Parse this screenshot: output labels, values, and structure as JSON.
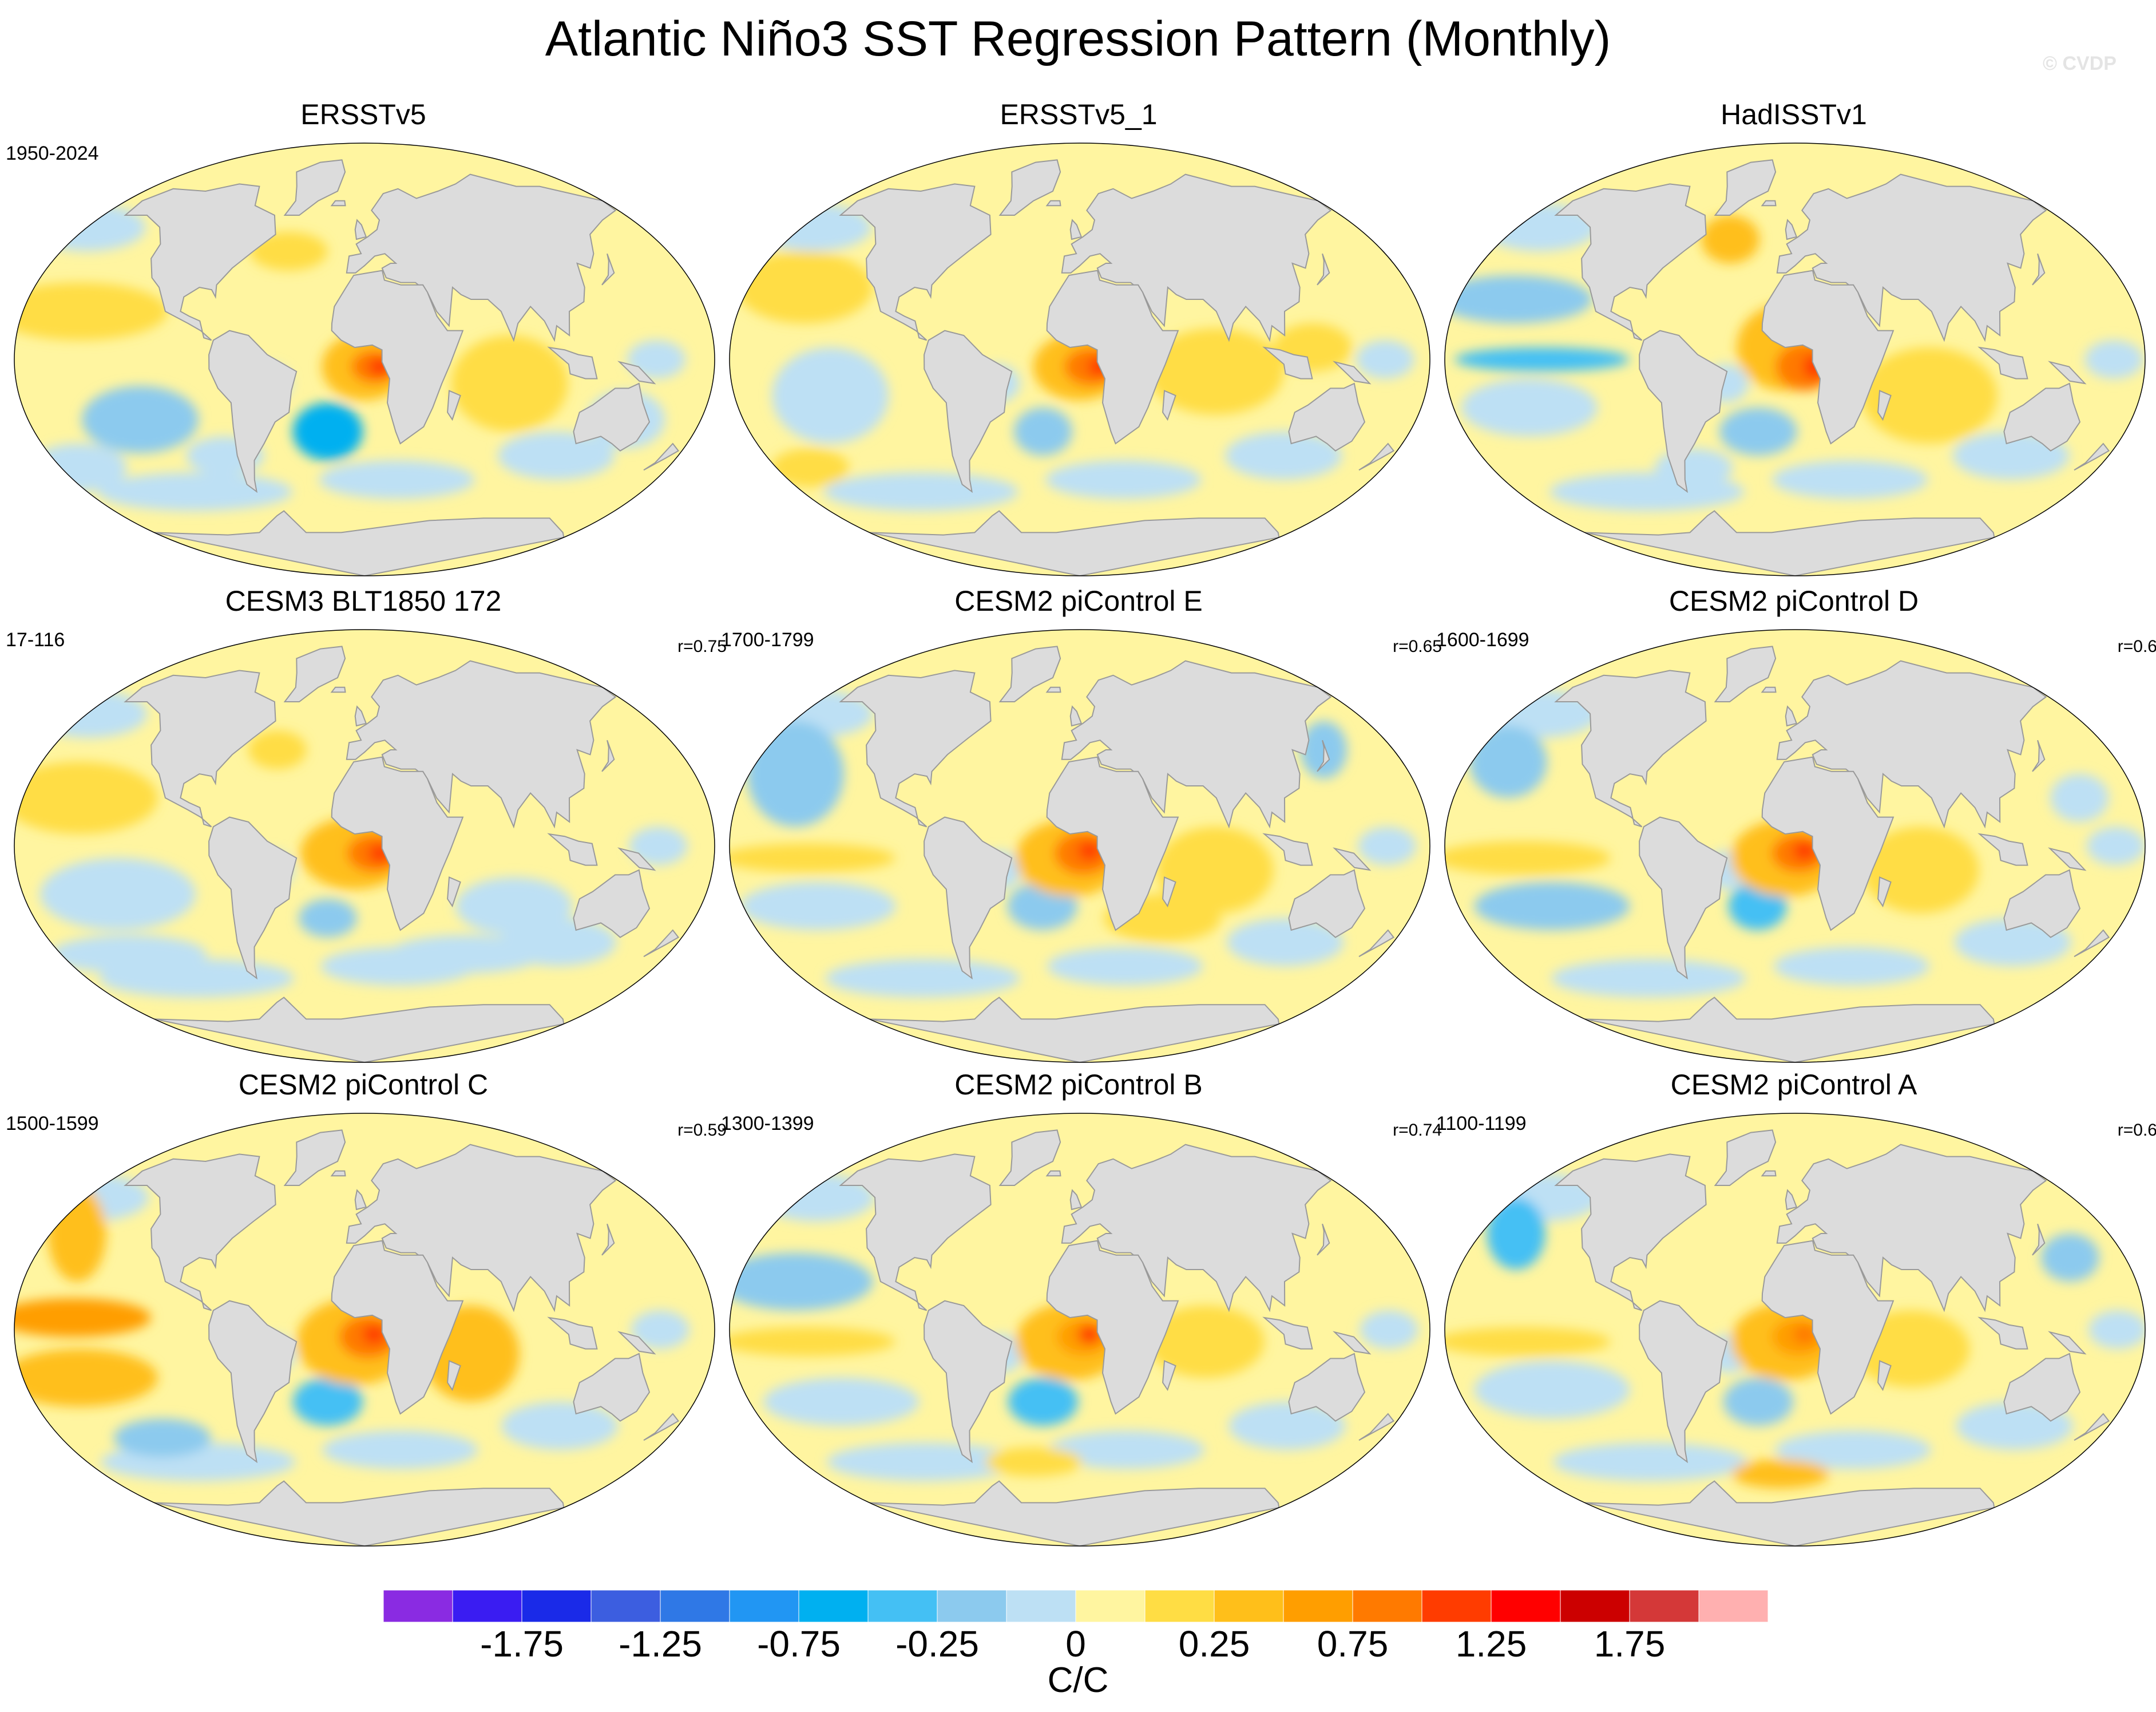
{
  "title": "Atlantic Niño3 SST Regression Pattern (Monthly)",
  "watermark": "© CVDP",
  "panels": [
    {
      "title": "ERSSTv5",
      "period": "1950-2024",
      "corr": "",
      "variant": 0
    },
    {
      "title": "ERSSTv5_1",
      "period": "",
      "corr": "",
      "variant": 1
    },
    {
      "title": "HadISSTv1",
      "period": "",
      "corr": "",
      "variant": 2
    },
    {
      "title": "CESM3 BLT1850 172",
      "period": "17-116",
      "corr": "r=0.75",
      "variant": 3
    },
    {
      "title": "CESM2 piControl E",
      "period": "1700-1799",
      "corr": "r=0.65",
      "variant": 4
    },
    {
      "title": "CESM2 piControl D",
      "period": "1600-1699",
      "corr": "r=0.6",
      "variant": 5
    },
    {
      "title": "CESM2 piControl C",
      "period": "1500-1599",
      "corr": "r=0.59",
      "variant": 6
    },
    {
      "title": "CESM2 piControl B",
      "period": "1300-1399",
      "corr": "r=0.74",
      "variant": 7
    },
    {
      "title": "CESM2 piControl A",
      "period": "1100-1199",
      "corr": "r=0.6",
      "variant": 8
    }
  ],
  "colorbar": {
    "units": "C/C",
    "labels": [
      "-1.75",
      "-1.25",
      "-0.75",
      "-0.25",
      "0",
      "0.25",
      "0.75",
      "1.25",
      "1.75"
    ],
    "colors": [
      "#8a2be2",
      "#3a1cf2",
      "#1a2ae8",
      "#3c5ee0",
      "#2f78e6",
      "#2196f3",
      "#00b0f0",
      "#44c0f4",
      "#8ccaee",
      "#bde0f4",
      "#fff5a0",
      "#ffdd44",
      "#ffbf1a",
      "#ff9e00",
      "#ff7a00",
      "#ff3c00",
      "#ff0000",
      "#cc0000",
      "#d43838",
      "#ffb0b0"
    ]
  },
  "map_colors": {
    "land": "#dcdcdc",
    "coast": "#9a9a9a",
    "ocean_base": "#fff5a0"
  }
}
